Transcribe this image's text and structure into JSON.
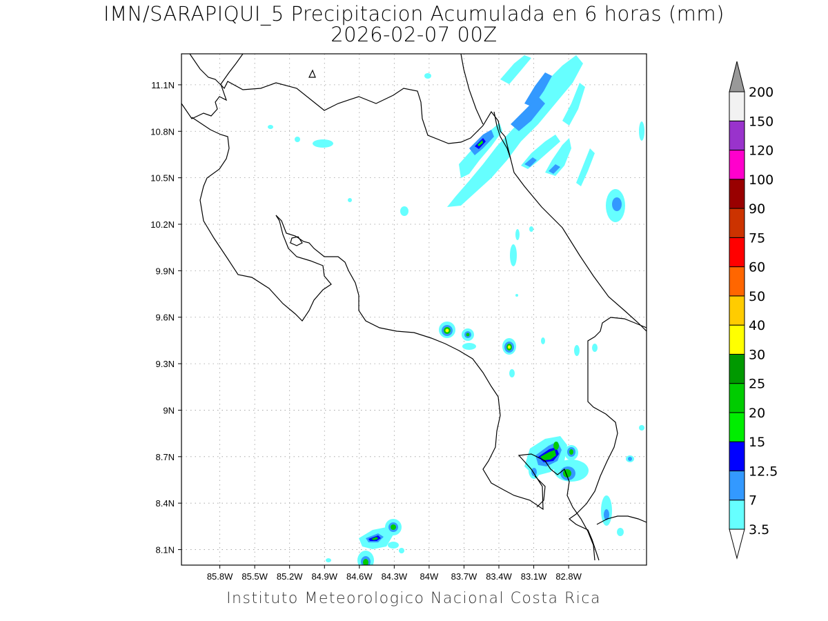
{
  "title": {
    "line1": "IMN/SARAPIQUI_5 Precipitacion Acumulada en 6 horas (mm)",
    "line2": "2026-02-07 00Z"
  },
  "footer": "Instituto Meteorologico Nacional Costa Rica",
  "axes": {
    "lon_ticks": [
      "85.8W",
      "85.5W",
      "85.2W",
      "84.9W",
      "84.6W",
      "84.3W",
      "84W",
      "83.7W",
      "83.4W",
      "83.1W",
      "82.8W"
    ],
    "lat_ticks": [
      "11.1N",
      "10.8N",
      "10.5N",
      "10.2N",
      "9.9N",
      "9.6N",
      "9.3N",
      "9N",
      "8.7N",
      "8.4N",
      "8.1N"
    ],
    "lon_range": [
      -86.13,
      -82.13
    ],
    "lat_range": [
      8.0,
      11.3
    ]
  },
  "colorbar": {
    "labels": [
      "3.5",
      "7",
      "12.5",
      "15",
      "20",
      "25",
      "30",
      "40",
      "50",
      "60",
      "75",
      "90",
      "100",
      "120",
      "150",
      "200"
    ],
    "colors": [
      "#66ffff",
      "#3399ff",
      "#0000ff",
      "#00ee00",
      "#00cc00",
      "#009900",
      "#ffff00",
      "#ffcc00",
      "#ff6600",
      "#ff0000",
      "#cc3300",
      "#990000",
      "#ff00cc",
      "#9933cc",
      "#f2f2f2",
      "#999999"
    ]
  }
}
